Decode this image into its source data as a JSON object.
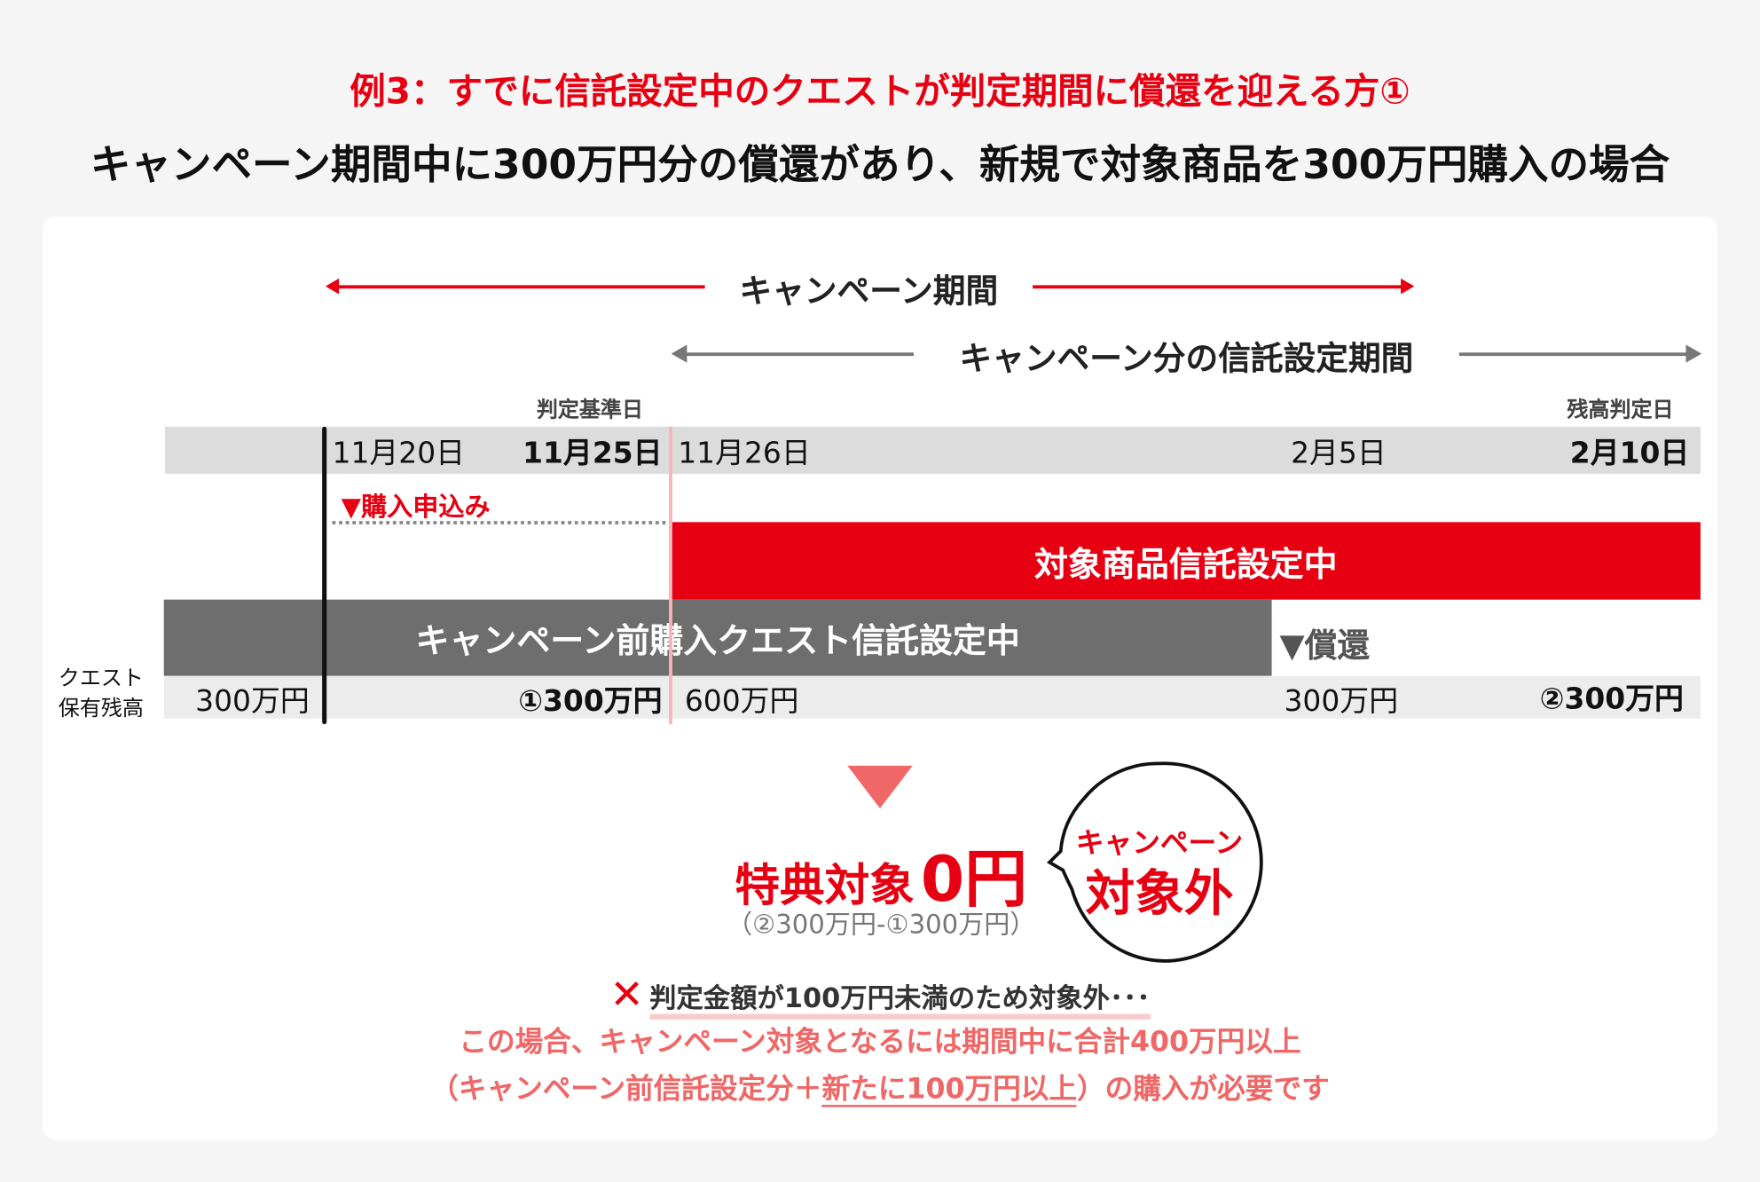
{
  "header": {
    "example_title": "例3：すでに信託設定中のクエストが判定期間に償還を迎える方①",
    "subtitle": "キャンペーン期間中に300万円分の償還があり、新規で対象商品を300万円購入の場合"
  },
  "timeline": {
    "campaign_period": "キャンペーン期間",
    "trust_period": "キャンペーン分の信託設定期間",
    "judgement_base_label": "判定基準日",
    "balance_judgement_label": "残高判定日",
    "dates": [
      "11月20日",
      "11月25日",
      "11月26日",
      "2月5日",
      "2月10日"
    ],
    "purchase_marker": "▼購入申込み",
    "target_bar": "対象商品信託設定中",
    "pre_bar": "キャンペーン前購入クエスト信託設定中",
    "redemption_marker": "▼償還",
    "balance_label_1": "クエスト",
    "balance_label_2": "保有残高",
    "balances": [
      "300万円",
      "①300万円",
      "600万円",
      "300万円",
      "②300万円"
    ]
  },
  "result": {
    "label": "特典対象",
    "amount": "0円",
    "formula": "（②300万円-①300万円）",
    "bubble_line1": "キャンペーン",
    "bubble_line2": "対象外",
    "cross_icon": "cross-icon",
    "reason": "判定金額が100万円未満のため対象外･･･",
    "note_line1": "この場合、キャンペーン対象となるには期間中に合計400万円以上",
    "note_line2_a": "（キャンペーン前信託設定分＋",
    "note_line2_b": "新たに100万円以上",
    "note_line2_c": "）の購入が必要です"
  },
  "colors": {
    "red": "#e60012",
    "gray_bar": "#6e6e6e",
    "salmon": "#ef6767",
    "date_band": "#dcdcdc"
  }
}
